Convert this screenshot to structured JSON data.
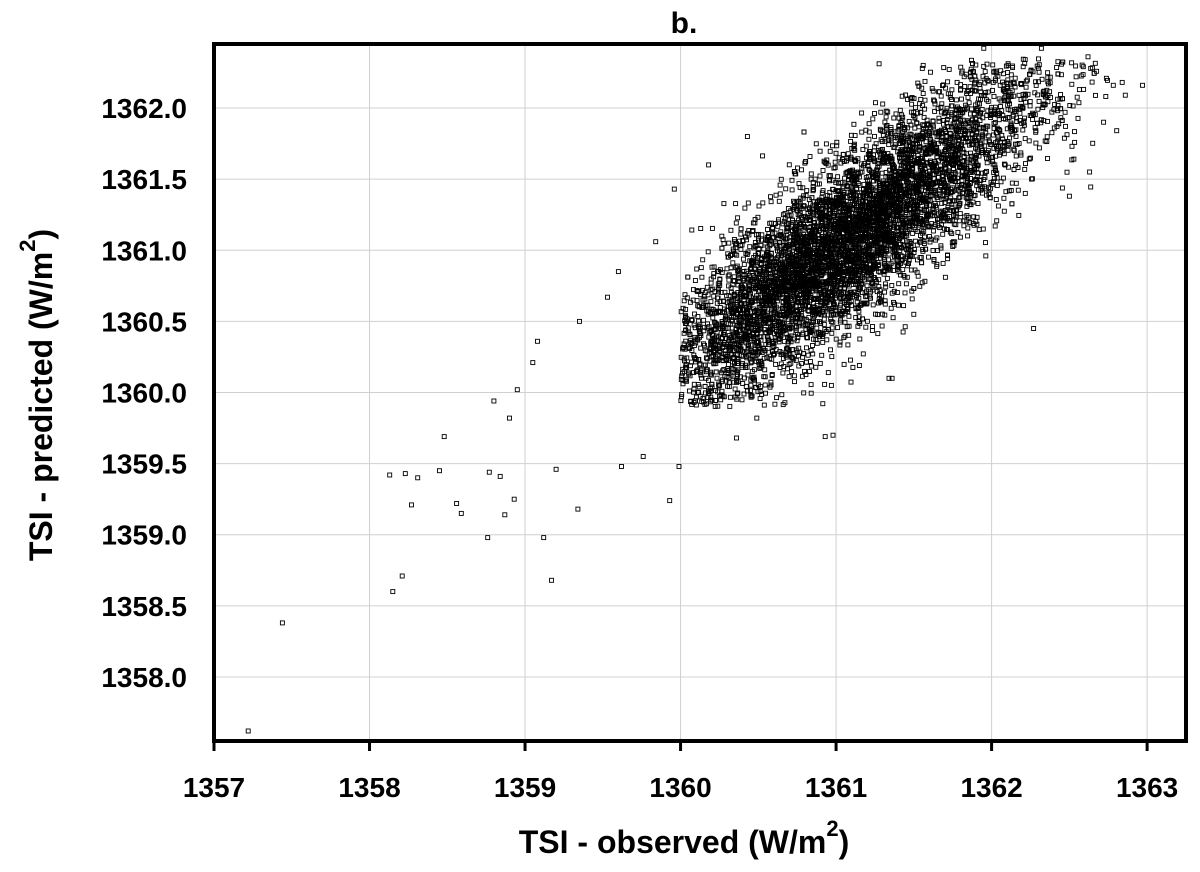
{
  "chart_data": {
    "type": "scatter",
    "title": "b.",
    "xlabel": "TSI - observed (W/m",
    "xlabel_sup": "2",
    "xlabel_close": ")",
    "ylabel": "TSI - predicted (W/m",
    "ylabel_sup": "2",
    "ylabel_close": ")",
    "xlim": [
      1357,
      1363.25
    ],
    "ylim": [
      1357.55,
      1362.45
    ],
    "xticks": [
      1357,
      1358,
      1359,
      1360,
      1361,
      1362,
      1363
    ],
    "xtick_labels": [
      "1357",
      "1358",
      "1359",
      "1360",
      "1361",
      "1362",
      "1363"
    ],
    "yticks": [
      1358.0,
      1358.5,
      1359.0,
      1359.5,
      1360.0,
      1360.5,
      1361.0,
      1361.5,
      1362.0
    ],
    "ytick_labels": [
      "1358.0",
      "1358.5",
      "1359.0",
      "1359.5",
      "1360.0",
      "1360.5",
      "1361.0",
      "1361.5",
      "1362.0"
    ],
    "grid": true,
    "marker": "open-square",
    "series": [
      {
        "points_explicit": [
          [
            1357.22,
            1357.62
          ],
          [
            1357.44,
            1358.38
          ],
          [
            1358.15,
            1358.6
          ],
          [
            1358.21,
            1358.71
          ],
          [
            1358.13,
            1359.42
          ],
          [
            1358.23,
            1359.43
          ],
          [
            1358.27,
            1359.21
          ],
          [
            1358.31,
            1359.4
          ],
          [
            1358.45,
            1359.45
          ],
          [
            1358.48,
            1359.69
          ],
          [
            1358.56,
            1359.22
          ],
          [
            1358.59,
            1359.15
          ],
          [
            1358.76,
            1358.98
          ],
          [
            1358.77,
            1359.44
          ],
          [
            1358.8,
            1359.94
          ],
          [
            1358.84,
            1359.41
          ],
          [
            1358.87,
            1359.14
          ],
          [
            1358.9,
            1359.82
          ],
          [
            1358.93,
            1359.25
          ],
          [
            1358.95,
            1360.02
          ],
          [
            1359.05,
            1360.21
          ],
          [
            1359.08,
            1360.36
          ],
          [
            1359.12,
            1358.98
          ],
          [
            1359.17,
            1358.68
          ],
          [
            1359.2,
            1359.46
          ],
          [
            1359.34,
            1359.18
          ],
          [
            1359.35,
            1360.5
          ],
          [
            1359.53,
            1360.67
          ],
          [
            1359.6,
            1360.85
          ],
          [
            1359.62,
            1359.48
          ],
          [
            1359.76,
            1359.55
          ],
          [
            1359.84,
            1361.06
          ],
          [
            1359.93,
            1359.24
          ],
          [
            1359.96,
            1361.43
          ],
          [
            1359.99,
            1359.48
          ],
          [
            1360.18,
            1361.6
          ],
          [
            1360.31,
            1361.05
          ],
          [
            1360.36,
            1359.68
          ],
          [
            1360.43,
            1361.8
          ],
          [
            1360.49,
            1359.82
          ],
          [
            1360.93,
            1359.69
          ],
          [
            1360.98,
            1359.7
          ],
          [
            1360.97,
            1360.05
          ],
          [
            1361.15,
            1360.19
          ],
          [
            1361.34,
            1360.1
          ],
          [
            1361.36,
            1360.1
          ],
          [
            1362.27,
            1360.45
          ],
          [
            1362.32,
            1362.42
          ],
          [
            1362.5,
            1361.38
          ],
          [
            1362.63,
            1361.55
          ],
          [
            1362.72,
            1361.9
          ],
          [
            1362.84,
            1362.18
          ],
          [
            1362.86,
            1362.09
          ],
          [
            1362.97,
            1362.16
          ],
          [
            1362.62,
            1362.36
          ],
          [
            1361.95,
            1362.42
          ],
          [
            1360.77,
            1361.26
          ],
          [
            1361.02,
            1361.65
          ],
          [
            1361.5,
            1360.55
          ]
        ],
        "cloud": {
          "n_points": 6500,
          "seed": 7,
          "center": [
            1361.05,
            1361.05
          ],
          "x_sd": 0.62,
          "slope": 0.82,
          "resid_sd": 0.3
        }
      }
    ]
  }
}
